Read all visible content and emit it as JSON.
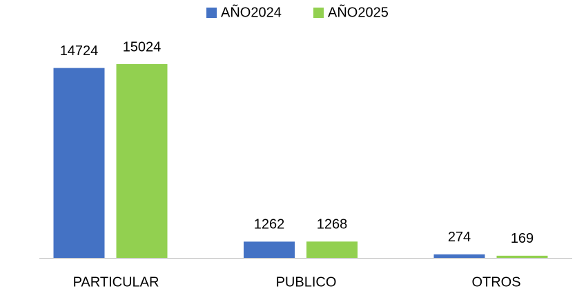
{
  "chart_data": {
    "type": "bar",
    "categories": [
      "PARTICULAR",
      "PUBLICO",
      "OTROS"
    ],
    "series": [
      {
        "name": "AÑO2024",
        "color": "#4472c4",
        "values": [
          14724,
          1262,
          274
        ]
      },
      {
        "name": "AÑO2025",
        "color": "#92d050",
        "values": [
          15024,
          1268,
          169
        ]
      }
    ],
    "legend": "top"
  }
}
